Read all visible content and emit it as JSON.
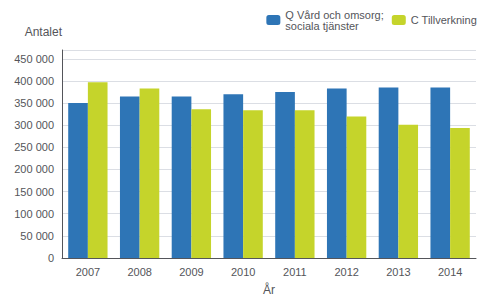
{
  "chart_data": {
    "type": "bar",
    "xlabel": "År",
    "ylabel": "Antalet",
    "categories": [
      "2007",
      "2008",
      "2009",
      "2010",
      "2011",
      "2012",
      "2013",
      "2014"
    ],
    "series": [
      {
        "name": "Q Vård och omsorg;\nsociala tjänster",
        "color": "#2E75B6",
        "values": [
          350000,
          365000,
          365000,
          370000,
          375000,
          383000,
          385000,
          385000
        ]
      },
      {
        "name": "C Tillverkning",
        "color": "#C5D42B",
        "values": [
          397000,
          383000,
          336000,
          334000,
          334000,
          320000,
          301000,
          294000
        ]
      }
    ],
    "ylim": [
      0,
      470000
    ],
    "yticks": [
      0,
      {
        "value": 50000,
        "label": "50 000"
      },
      {
        "value": 100000,
        "label": "100 000"
      },
      {
        "value": 150000,
        "label": "150 000"
      },
      {
        "value": 200000,
        "label": "200 000"
      },
      {
        "value": 250000,
        "label": "250 000"
      },
      {
        "value": 300000,
        "label": "300 000"
      },
      {
        "value": 350000,
        "label": "350 000"
      },
      {
        "value": 400000,
        "label": "400 000"
      },
      {
        "value": 450000,
        "label": "450 000"
      }
    ],
    "grid": true,
    "legend": "upper right"
  }
}
